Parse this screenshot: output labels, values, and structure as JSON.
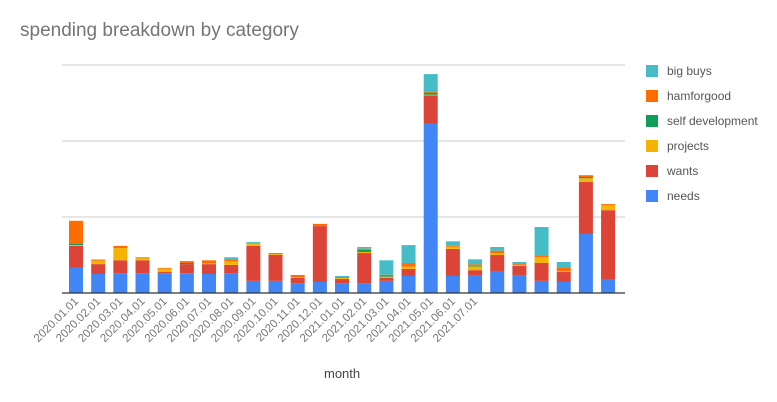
{
  "chart_data": {
    "type": "bar",
    "stacked": true,
    "title": "spending breakdown by category",
    "xlabel": "month",
    "ylabel": "",
    "ylim": [
      0,
      300
    ],
    "grid": true,
    "gridlines": [
      100,
      200,
      300
    ],
    "legend_position": "right",
    "x_tick_labels": [
      "2020.01.01",
      "2020.02.01",
      "2020.03.01",
      "2020.04.01",
      "2020.05.01",
      "2020.06.01",
      "2020.07.01",
      "2020.08.01",
      "2020.09.01",
      "2020.10.01",
      "2020.11.01",
      "2020.12.01",
      "2021.01.01",
      "2021.02.01",
      "2021.03.01",
      "2021.04.01",
      "2021.05.01",
      "2021.06.01",
      "2021.07.01"
    ],
    "categories": [
      "2020.01.01",
      "2020.02.01",
      "2020.03.01",
      "2020.04.01",
      "2020.05.01",
      "2020.06.01",
      "2020.07.01",
      "2020.08.01",
      "2020.09.01",
      "2020.10.01",
      "2020.11.01",
      "2020.12.01",
      "2021.01.01",
      "2021.02.01",
      "2021.03.01",
      "2021.04.01",
      "2021.05.01",
      "2021.06.01",
      "2021.07.01",
      "",
      "",
      "",
      "",
      "",
      ""
    ],
    "series": [
      {
        "name": "needs",
        "color": "#4285F4",
        "values": [
          33,
          25,
          26,
          26,
          26,
          26,
          25,
          26,
          16,
          16,
          13,
          14.5,
          13,
          13,
          16,
          22.4,
          223,
          22.4,
          23.7,
          29,
          23.7,
          16,
          14.5,
          77.6,
          18.4
        ]
      },
      {
        "name": "wants",
        "color": "#DB4437",
        "values": [
          29,
          13,
          17,
          17,
          1.6,
          12,
          13,
          11,
          46,
          34,
          7,
          73.5,
          5.4,
          39.6,
          4,
          9.2,
          37,
          35.6,
          6.3,
          21,
          11.8,
          23.5,
          13.1,
          68.4,
          90.6
        ]
      },
      {
        "name": "projects",
        "color": "#F4B400",
        "values": [
          1,
          4.5,
          16,
          3,
          4.4,
          0,
          1,
          4.7,
          3,
          1,
          1,
          0,
          1.3,
          1.4,
          1.5,
          3,
          1,
          3,
          5,
          2.6,
          1.3,
          7.9,
          1.4,
          5,
          6.8
        ]
      },
      {
        "name": "self development",
        "color": "#0F9D58",
        "values": [
          1.5,
          0,
          0,
          0,
          0,
          1.5,
          0,
          0,
          0,
          0,
          0,
          0,
          0,
          3,
          1.5,
          0,
          2.6,
          0,
          1,
          0,
          0,
          0,
          0,
          1.6,
          0
        ]
      },
      {
        "name": "hamforgood",
        "color": "#FF6D00",
        "values": [
          30.5,
          1.5,
          3,
          1,
          1,
          2.5,
          4,
          2.3,
          0,
          1.6,
          2.7,
          3,
          1.3,
          1.3,
          1,
          4.9,
          1.4,
          1.3,
          1.7,
          3.1,
          1.2,
          1.3,
          5,
          2.4,
          1.2
        ]
      },
      {
        "name": "big buys",
        "color": "#46BDC6",
        "values": [
          0,
          0,
          0,
          0,
          0,
          0,
          0,
          3,
          2,
          0,
          0,
          0,
          1.4,
          2.2,
          19,
          23.5,
          23,
          5.7,
          6.6,
          4.8,
          2.8,
          38.1,
          6.8,
          0,
          0
        ]
      }
    ]
  },
  "legend": {
    "items": [
      {
        "label": "big buys",
        "color": "#46BDC6"
      },
      {
        "label": "hamforgood",
        "color": "#FF6D00"
      },
      {
        "label": "self development",
        "color": "#0F9D58"
      },
      {
        "label": "projects",
        "color": "#F4B400"
      },
      {
        "label": "wants",
        "color": "#DB4437"
      },
      {
        "label": "needs",
        "color": "#4285F4"
      }
    ]
  }
}
